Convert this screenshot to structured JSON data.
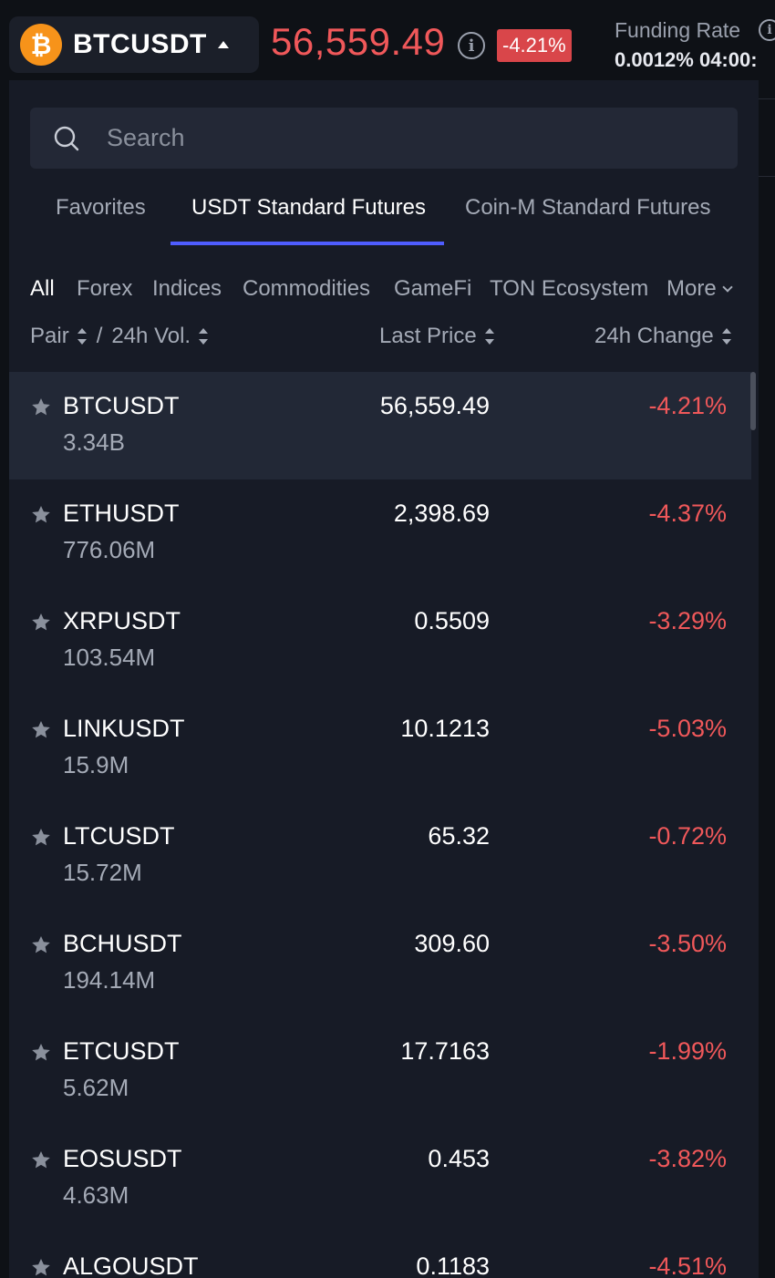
{
  "header": {
    "pair": "BTCUSDT",
    "coin_glyph": "₿",
    "price": "56,559.49",
    "change": "-4.21%",
    "funding_label": "Funding Rate",
    "funding_value": "0.0012% 04:00:"
  },
  "search": {
    "placeholder": "Search"
  },
  "tabs": [
    {
      "label": "Favorites"
    },
    {
      "label": "USDT Standard Futures"
    },
    {
      "label": "Coin-M Standard Futures"
    }
  ],
  "categories": [
    {
      "label": "All"
    },
    {
      "label": "Forex"
    },
    {
      "label": "Indices"
    },
    {
      "label": "Commodities"
    },
    {
      "label": "GameFi"
    },
    {
      "label": "TON Ecosystem"
    },
    {
      "label": "More"
    }
  ],
  "columns": {
    "pair": "Pair",
    "volume": "24h Vol.",
    "separator": "/",
    "last_price": "Last Price",
    "change": "24h Change"
  },
  "rows": [
    {
      "symbol": "BTCUSDT",
      "volume": "3.34B",
      "price": "56,559.49",
      "change": "-4.21%"
    },
    {
      "symbol": "ETHUSDT",
      "volume": "776.06M",
      "price": "2,398.69",
      "change": "-4.37%"
    },
    {
      "symbol": "XRPUSDT",
      "volume": "103.54M",
      "price": "0.5509",
      "change": "-3.29%"
    },
    {
      "symbol": "LINKUSDT",
      "volume": "15.9M",
      "price": "10.1213",
      "change": "-5.03%"
    },
    {
      "symbol": "LTCUSDT",
      "volume": "15.72M",
      "price": "65.32",
      "change": "-0.72%"
    },
    {
      "symbol": "BCHUSDT",
      "volume": "194.14M",
      "price": "309.60",
      "change": "-3.50%"
    },
    {
      "symbol": "ETCUSDT",
      "volume": "5.62M",
      "price": "17.7163",
      "change": "-1.99%"
    },
    {
      "symbol": "EOSUSDT",
      "volume": "4.63M",
      "price": "0.453",
      "change": "-3.82%"
    },
    {
      "symbol": "ALGOUSDT",
      "volume": "",
      "price": "0.1183",
      "change": "-4.51%"
    }
  ],
  "colors": {
    "negative": "#f0585a",
    "accent": "#4f5dff",
    "panel": "#171b26"
  }
}
